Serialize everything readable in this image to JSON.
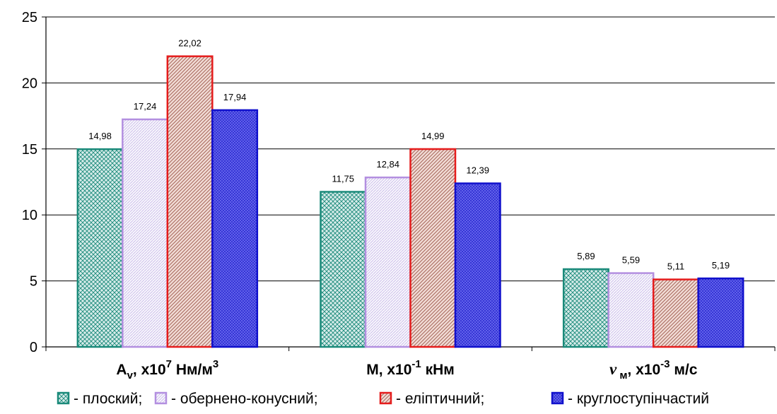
{
  "chart_data": {
    "type": "bar",
    "title": "",
    "xlabel": "",
    "ylabel": "",
    "ylim": [
      0,
      25
    ],
    "yticks": [
      "0",
      "5",
      "10",
      "15",
      "20",
      "25"
    ],
    "grid": true,
    "legend_position": "bottom",
    "categories": [
      {
        "base": "A",
        "sub": "v",
        "mid": ", x10",
        "sup": "7",
        "tail": " Нм/м",
        "sup2": "3"
      },
      {
        "base": "M",
        "sub": "",
        "mid": ", x10",
        "sup": "-1",
        "tail": " кНм",
        "sup2": ""
      },
      {
        "base": "v",
        "sub": " м",
        "mid": ", x10",
        "sup": "-3",
        "tail": " м/с",
        "sup2": ""
      }
    ],
    "series": [
      {
        "name": "- плоский;",
        "values": [
          14.98,
          11.75,
          5.89
        ],
        "labels": [
          "14,98",
          "11,75",
          "5,89"
        ],
        "color": "#1a8a7a",
        "fill_color": "#b9ddd8",
        "pattern": "crosshatch"
      },
      {
        "name": "- обернено-конусний;",
        "values": [
          17.24,
          12.84,
          5.59
        ],
        "labels": [
          "17,24",
          "12,84",
          "5,59"
        ],
        "color": "#b38fe0",
        "fill_color": "#ecebf8",
        "pattern": "dots"
      },
      {
        "name": "- еліптичний;",
        "values": [
          22.02,
          14.99,
          5.11
        ],
        "labels": [
          "22,02",
          "14,99",
          "5,11"
        ],
        "color": "#e51c1c",
        "fill_color": "#e6b0a8",
        "pattern": "diagonal"
      },
      {
        "name": "- круглоступінчастий",
        "values": [
          17.94,
          12.39,
          5.19
        ],
        "labels": [
          "17,94",
          "12,39",
          "5,19"
        ],
        "color": "#1010cc",
        "fill_color": "#3a3ad8",
        "pattern": "grid"
      }
    ]
  }
}
